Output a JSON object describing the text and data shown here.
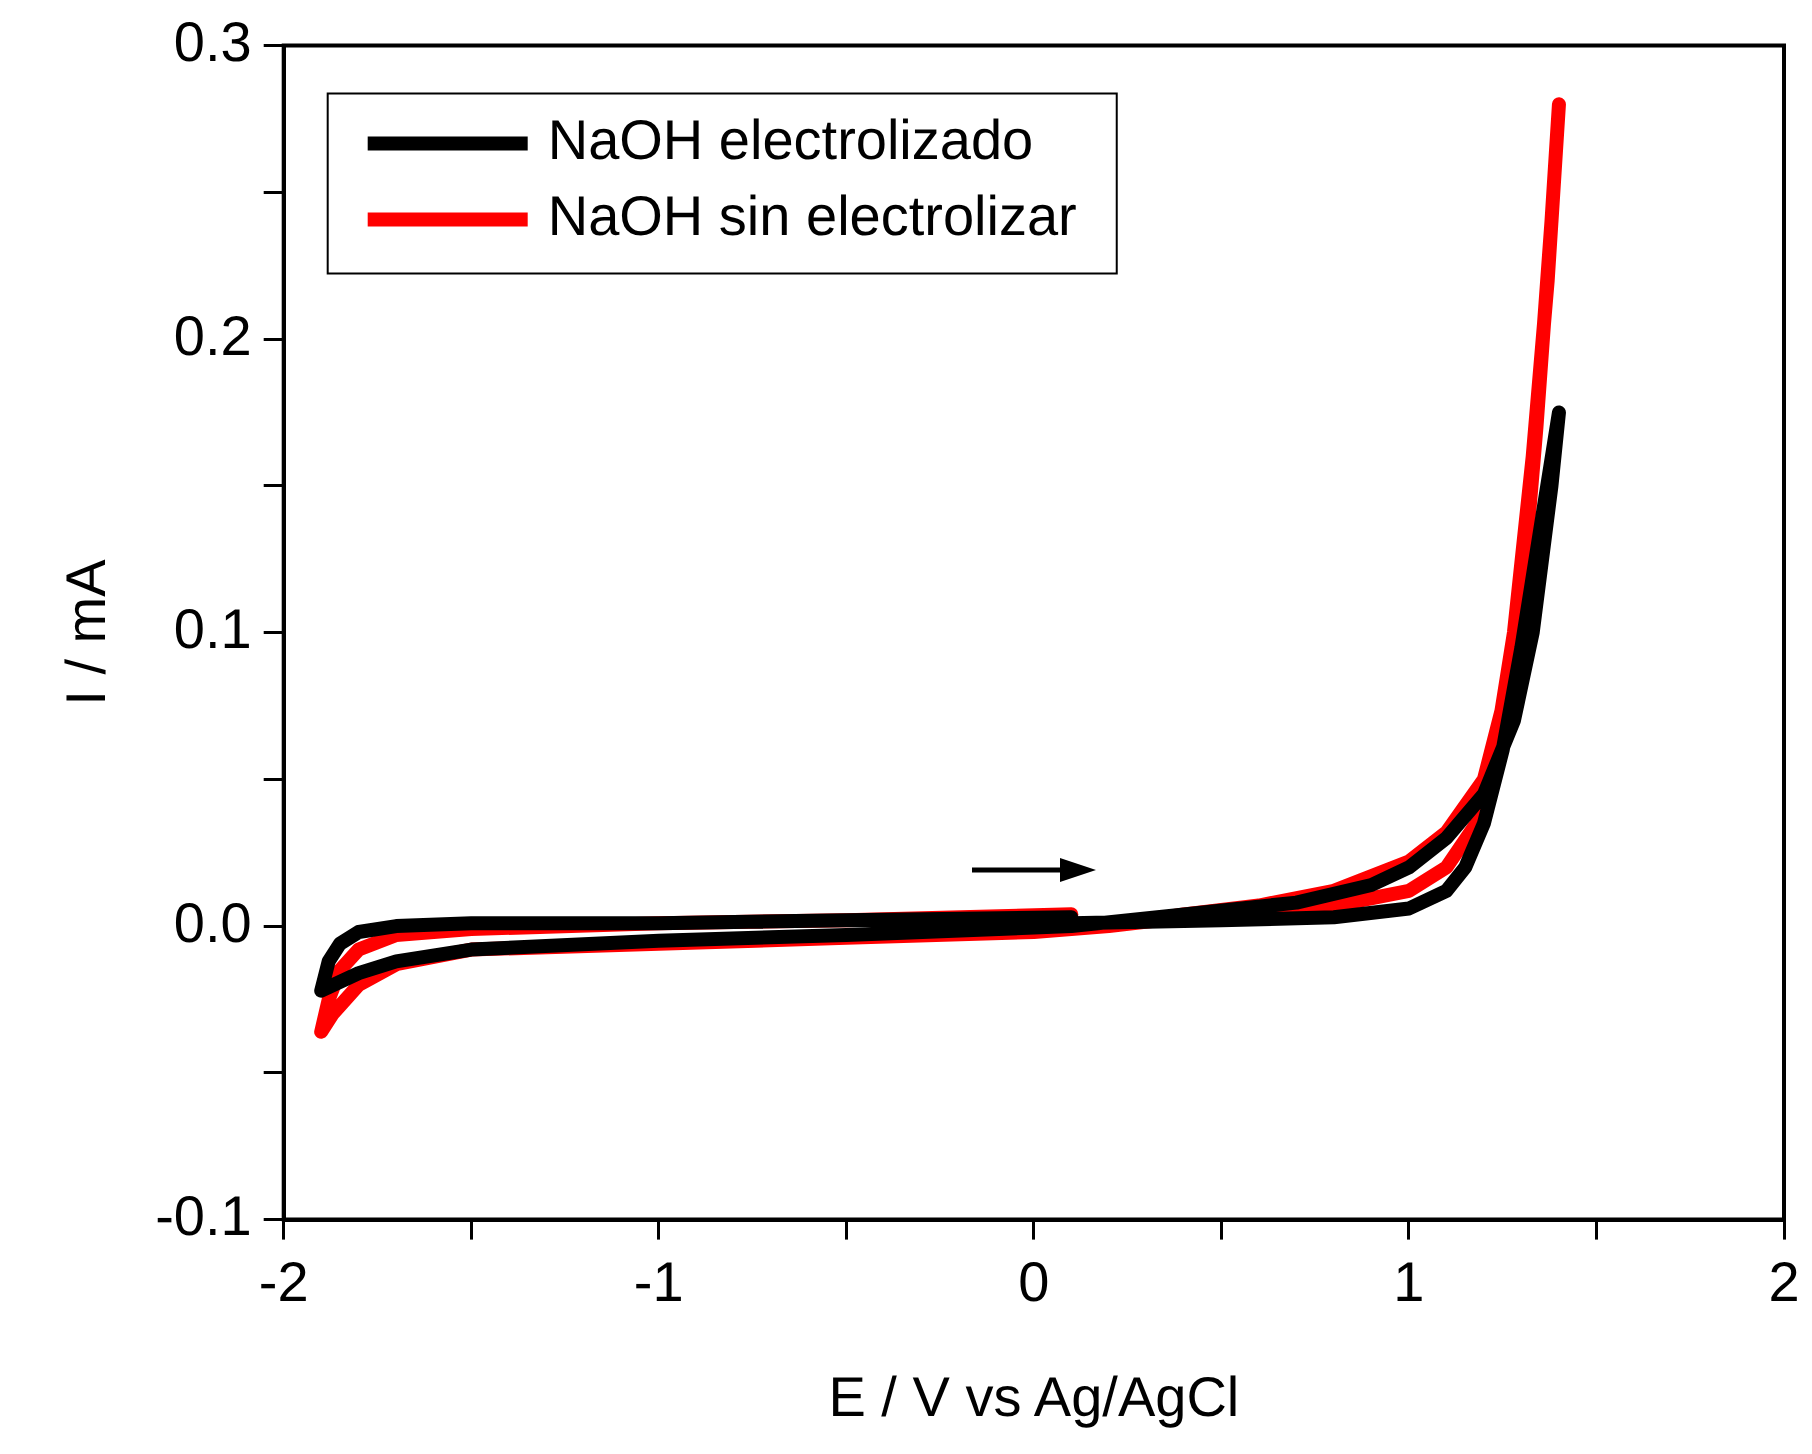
{
  "chart_data": {
    "type": "line",
    "xlabel": "E / V vs Ag/AgCl",
    "ylabel": "I / mA",
    "xlim": [
      -2,
      2
    ],
    "ylim": [
      -0.1,
      0.3
    ],
    "xticks": [
      -2,
      {
        "value": -1.5,
        "label": null
      },
      -1,
      {
        "value": -0.5,
        "label": null
      },
      0,
      {
        "value": 0.5,
        "label": null
      },
      1,
      {
        "value": 1.5,
        "label": null
      },
      2
    ],
    "yticks": [
      {
        "value": -0.1,
        "label": "-0.1"
      },
      {
        "value": -0.05,
        "label": null
      },
      {
        "value": 0,
        "label": "0.0"
      },
      {
        "value": 0.05,
        "label": null
      },
      0.1,
      {
        "value": 0.15,
        "label": null
      },
      0.2,
      {
        "value": 0.25,
        "label": null
      },
      0.3
    ],
    "grid": false,
    "legend": "top left",
    "marker": "none",
    "line_style": "solid",
    "series": [
      {
        "name": "NaOH electrolizado",
        "color": "#000000",
        "x": [
          0.1,
          0.5,
          0.8,
          1.0,
          1.1,
          1.15,
          1.2,
          1.25,
          1.3,
          1.35,
          1.4,
          1.38,
          1.33,
          1.28,
          1.2,
          1.1,
          1.0,
          0.9,
          0.7,
          0.4,
          0.1,
          -0.5,
          -1.0,
          -1.5,
          -1.7,
          -1.8,
          -1.9,
          -1.88,
          -1.85,
          -1.8,
          -1.7,
          -1.5,
          -1.0,
          -0.5,
          0.1
        ],
        "values": [
          0.001,
          0.002,
          0.003,
          0.006,
          0.012,
          0.02,
          0.035,
          0.06,
          0.095,
          0.135,
          0.175,
          0.15,
          0.1,
          0.07,
          0.045,
          0.03,
          0.02,
          0.014,
          0.008,
          0.004,
          0.0,
          -0.003,
          -0.005,
          -0.008,
          -0.012,
          -0.016,
          -0.022,
          -0.012,
          -0.006,
          -0.002,
          0.0,
          0.001,
          0.001,
          0.002,
          0.003
        ]
      },
      {
        "name": "NaOH sin electrolizar",
        "color": "#ff0000",
        "x": [
          0.2,
          0.4,
          0.6,
          0.8,
          1.0,
          1.1,
          1.18,
          1.23,
          1.28,
          1.33,
          1.37,
          1.4,
          1.38,
          1.34,
          1.3,
          1.25,
          1.2,
          1.1,
          1.0,
          0.8,
          0.6,
          0.4,
          0.2,
          0.0,
          -0.5,
          -1.0,
          -1.5,
          -1.7,
          -1.8,
          -1.87,
          -1.9,
          -1.88,
          -1.85,
          -1.8,
          -1.7,
          -1.5,
          -1.0,
          -0.5,
          0.1
        ],
        "values": [
          0.0,
          0.003,
          0.005,
          0.007,
          0.012,
          0.02,
          0.035,
          0.06,
          0.1,
          0.16,
          0.22,
          0.28,
          0.24,
          0.17,
          0.11,
          0.075,
          0.05,
          0.032,
          0.022,
          0.012,
          0.007,
          0.004,
          0.0,
          -0.002,
          -0.004,
          -0.006,
          -0.008,
          -0.013,
          -0.02,
          -0.03,
          -0.036,
          -0.025,
          -0.015,
          -0.008,
          -0.003,
          -0.001,
          0.001,
          0.002,
          0.004
        ]
      }
    ]
  }
}
